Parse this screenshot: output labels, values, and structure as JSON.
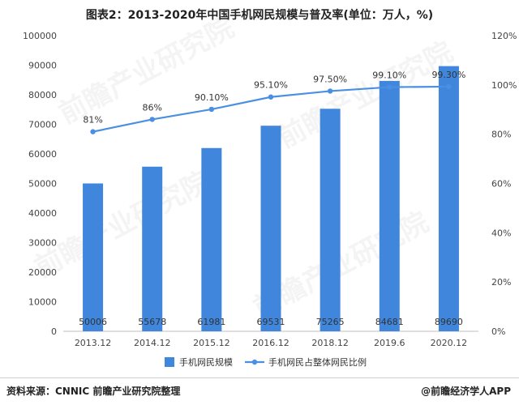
{
  "title": "图表2：2013-2020年中国手机网民规模与普及率(单位：万人，%)",
  "source": "资料来源：CNNIC 前瞻产业研究院整理",
  "brand": "@前瞻经济学人APP",
  "watermark": "前瞻产业研究院",
  "chart_data": {
    "type": "bar",
    "categories": [
      "2013.12",
      "2014.12",
      "2015.12",
      "2016.12",
      "2018.12",
      "2019.6",
      "2020.12"
    ],
    "series": [
      {
        "name": "手机网民规模",
        "type": "bar",
        "axis": "left",
        "values": [
          50006,
          55678,
          61981,
          69531,
          75265,
          84681,
          89690
        ],
        "labels": [
          "50006",
          "55678",
          "61981",
          "69531",
          "75265",
          "84681",
          "89690"
        ],
        "color": "#3F86DC"
      },
      {
        "name": "手机网民占整体网民比例",
        "type": "line",
        "axis": "right",
        "values": [
          81,
          86,
          90.1,
          95.1,
          97.5,
          99.1,
          99.3
        ],
        "labels": [
          "81%",
          "86%",
          "90.10%",
          "95.10%",
          "97.50%",
          "99.10%",
          "99.30%"
        ],
        "color": "#4A90E2"
      }
    ],
    "y_left": {
      "min": 0,
      "max": 100000,
      "ticks": [
        "0",
        "10000",
        "20000",
        "30000",
        "40000",
        "50000",
        "60000",
        "70000",
        "80000",
        "90000",
        "100000"
      ]
    },
    "y_right": {
      "min": 0,
      "max": 120,
      "ticks": [
        "0%",
        "20%",
        "40%",
        "60%",
        "80%",
        "100%",
        "120%"
      ]
    },
    "legend_position": "bottom",
    "grid": false
  }
}
